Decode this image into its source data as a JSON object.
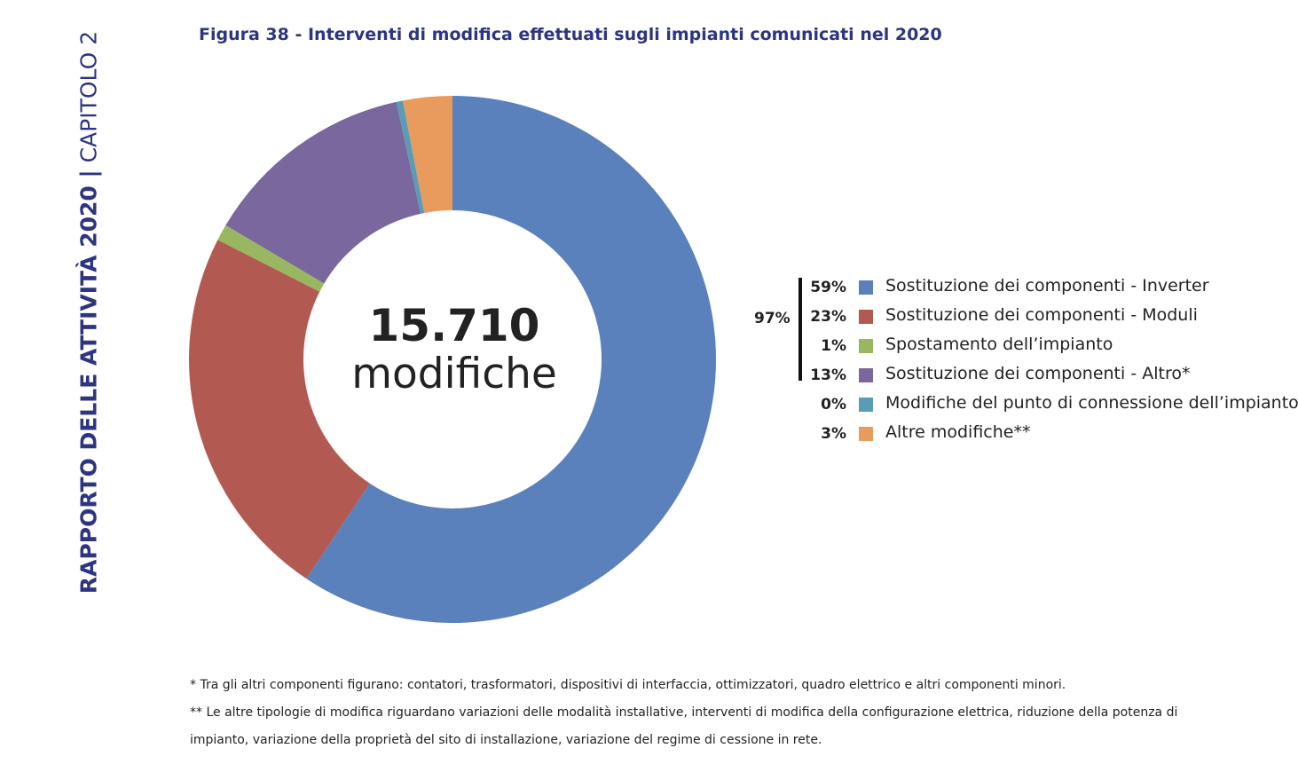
{
  "side_label": {
    "bold": "RAPPORTO DELLE ATTIVITÀ 2020 |",
    "light": " CAPITOLO 2"
  },
  "figure_title": "Figura 38 - Interventi di modifica effettuati sugli impianti comunicati nel 2020",
  "center": {
    "value": "15.710",
    "label": "modifiche"
  },
  "group_bracket": {
    "label": "97%"
  },
  "legend": [
    {
      "pct": "59%",
      "label": "Sostituzione dei componenti - Inverter",
      "color": "#5a81bb"
    },
    {
      "pct": "23%",
      "label": "Sostituzione dei componenti - Moduli",
      "color": "#b25a51"
    },
    {
      "pct": "1%",
      "label": "Spostamento dell’impianto",
      "color": "#98b760"
    },
    {
      "pct": "13%",
      "label": "Sostituzione dei componenti - Altro*",
      "color": "#79679d"
    },
    {
      "pct": "0%",
      "label": "Modifiche del punto di connessione dell’impianto",
      "color": "#5a9cb6"
    },
    {
      "pct": "3%",
      "label": "Altre modifiche**",
      "color": "#e89b5d"
    }
  ],
  "chart_data": {
    "type": "pie",
    "title": "Figura 38 - Interventi di modifica effettuati sugli impianti comunicati nel 2020",
    "categories": [
      "Sostituzione dei componenti - Inverter",
      "Sostituzione dei componenti - Moduli",
      "Spostamento dell’impianto",
      "Sostituzione dei componenti - Altro*",
      "Modifiche del punto di connessione dell’impianto",
      "Altre modifiche**"
    ],
    "values": [
      59,
      23,
      1,
      13,
      0.4,
      3
    ],
    "colors": [
      "#5a81bb",
      "#b25a51",
      "#98b760",
      "#79679d",
      "#5a9cb6",
      "#e89b5d"
    ],
    "legend": "right"
  },
  "footnotes": [
    "* Tra gli altri componenti figurano: contatori,  trasformatori, dispositivi di interfaccia, ottimizzatori, quadro elettrico e altri componenti minori.",
    "** Le altre tipologie di modifica riguardano variazioni delle modalità installative, interventi di modifica della configurazione elettrica, riduzione della potenza di impianto, variazione della proprietà del sito di installazione, variazione del regime di cessione in rete."
  ]
}
